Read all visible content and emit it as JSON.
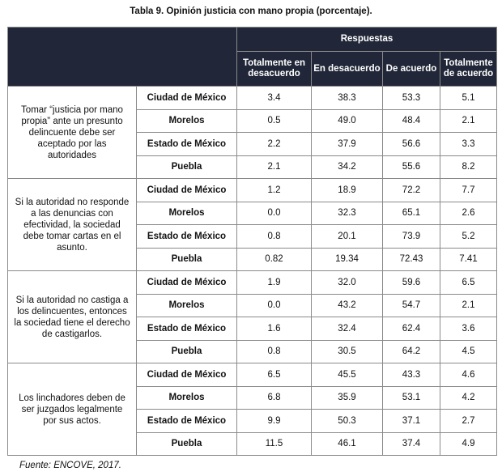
{
  "title": "Tabla 9. Opinión justicia con mano propia (porcentaje).",
  "header": {
    "group_label": "Respuestas",
    "columns": [
      "Totalmente en desacuerdo",
      "En desacuerdo",
      "De acuerdo",
      "Totalmente de acuerdo"
    ]
  },
  "groups": [
    {
      "statement": "Tomar “justicia por mano propia” ante un presunto delincuente debe ser aceptado por las autoridades",
      "rows": [
        {
          "state": "Ciudad de México",
          "values": [
            "3.4",
            "38.3",
            "53.3",
            "5.1"
          ]
        },
        {
          "state": "Morelos",
          "values": [
            "0.5",
            "49.0",
            "48.4",
            "2.1"
          ]
        },
        {
          "state": "Estado de México",
          "values": [
            "2.2",
            "37.9",
            "56.6",
            "3.3"
          ]
        },
        {
          "state": "Puebla",
          "values": [
            "2.1",
            "34.2",
            "55.6",
            "8.2"
          ]
        }
      ]
    },
    {
      "statement": "Si la autoridad no responde a las denuncias con efectividad, la sociedad debe tomar cartas en el asunto.",
      "rows": [
        {
          "state": "Ciudad de México",
          "values": [
            "1.2",
            "18.9",
            "72.2",
            "7.7"
          ]
        },
        {
          "state": "Morelos",
          "values": [
            "0.0",
            "32.3",
            "65.1",
            "2.6"
          ]
        },
        {
          "state": "Estado de México",
          "values": [
            "0.8",
            "20.1",
            "73.9",
            "5.2"
          ]
        },
        {
          "state": "Puebla",
          "values": [
            "0.82",
            "19.34",
            "72.43",
            "7.41"
          ]
        }
      ]
    },
    {
      "statement": "Si la autoridad no castiga a los delincuentes, entonces la sociedad tiene el derecho de castigarlos.",
      "rows": [
        {
          "state": "Ciudad de México",
          "values": [
            "1.9",
            "32.0",
            "59.6",
            "6.5"
          ]
        },
        {
          "state": "Morelos",
          "values": [
            "0.0",
            "43.2",
            "54.7",
            "2.1"
          ]
        },
        {
          "state": "Estado de México",
          "values": [
            "1.6",
            "32.4",
            "62.4",
            "3.6"
          ]
        },
        {
          "state": "Puebla",
          "values": [
            "0.8",
            "30.5",
            "64.2",
            "4.5"
          ]
        }
      ]
    },
    {
      "statement": "Los linchadores deben de ser juzgados legalmente por sus actos.",
      "rows": [
        {
          "state": "Ciudad de México",
          "values": [
            "6.5",
            "45.5",
            "43.3",
            "4.6"
          ]
        },
        {
          "state": "Morelos",
          "values": [
            "6.8",
            "35.9",
            "53.1",
            "4.2"
          ]
        },
        {
          "state": "Estado de México",
          "values": [
            "9.9",
            "50.3",
            "37.1",
            "2.7"
          ]
        },
        {
          "state": "Puebla",
          "values": [
            "11.5",
            "46.1",
            "37.4",
            "4.9"
          ]
        }
      ]
    }
  ],
  "source": "Fuente: ENCOVE, 2017."
}
